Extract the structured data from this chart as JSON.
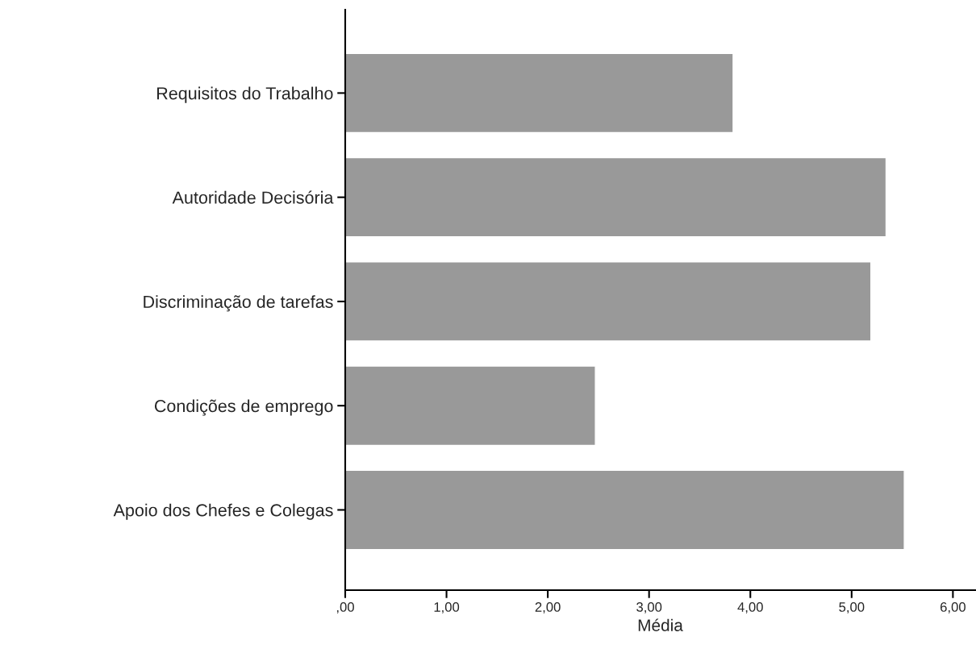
{
  "chart_data": {
    "type": "bar",
    "orientation": "horizontal",
    "xlabel": "Média",
    "categories": [
      "Requisitos do Trabalho",
      "Autoridade Decisória",
      "Discriminação de tarefas",
      "Condições de emprego",
      "Apoio dos Chefes e Colegas"
    ],
    "values": [
      3.83,
      5.34,
      5.19,
      2.47,
      5.52
    ],
    "color": "#999999",
    "xlim": [
      0,
      6.22
    ],
    "xticks": [
      {
        "value": 0,
        "label": ",00"
      },
      {
        "value": 1,
        "label": "1,00"
      },
      {
        "value": 2,
        "label": "2,00"
      },
      {
        "value": 3,
        "label": "3,00"
      },
      {
        "value": 4,
        "label": "4,00"
      },
      {
        "value": 5,
        "label": "5,00"
      },
      {
        "value": 6,
        "label": "6,00"
      }
    ],
    "grid": false,
    "legend": false
  }
}
